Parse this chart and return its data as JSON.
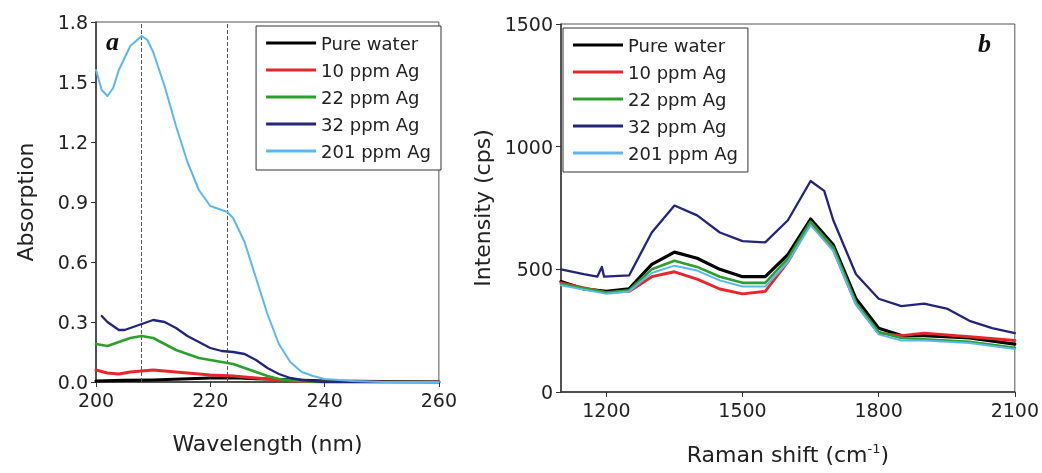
{
  "chart_data": [
    {
      "type": "line",
      "xlabel": "Wavelength (nm)",
      "ylabel": "Absorption",
      "annotations": [
        "a"
      ],
      "xlim": [
        200,
        260
      ],
      "xticks": [
        200,
        220,
        240,
        260
      ],
      "ylim": [
        0,
        1.8
      ],
      "yticks": [
        {
          "value": 0,
          "label": "0.0"
        },
        0.3,
        0.6,
        0.9,
        1.2,
        1.5,
        1.8
      ],
      "grid": false,
      "legend": "top right",
      "marker": "none",
      "line_style": "solid",
      "ref_lines": [
        {
          "axis": "x",
          "value": 208,
          "color": "#555555",
          "line_style": "dashed"
        },
        {
          "axis": "x",
          "value": 223,
          "color": "#555555",
          "line_style": "dashed"
        }
      ],
      "series": [
        {
          "name": "Pure water",
          "color": "#000000",
          "x": [
            200,
            205,
            210,
            215,
            220,
            225,
            230,
            235,
            240,
            250,
            260
          ],
          "values": [
            0.005,
            0.008,
            0.01,
            0.015,
            0.02,
            0.02,
            0.015,
            0.01,
            0.005,
            0.002,
            0
          ]
        },
        {
          "name": "10 ppm Ag",
          "color": "#e8262a",
          "x": [
            200,
            202,
            204,
            206,
            208,
            210,
            212,
            216,
            220,
            224,
            228,
            232,
            235,
            240,
            260
          ],
          "values": [
            0.06,
            0.045,
            0.04,
            0.05,
            0.055,
            0.06,
            0.055,
            0.045,
            0.035,
            0.03,
            0.02,
            0.01,
            0.003,
            0,
            0
          ]
        },
        {
          "name": "22 ppm Ag",
          "color": "#2ca02c",
          "x": [
            200,
            202,
            204,
            206,
            208,
            210,
            212,
            214,
            216,
            218,
            220,
            222,
            224,
            226,
            228,
            230,
            232,
            235,
            240,
            260
          ],
          "values": [
            0.19,
            0.18,
            0.2,
            0.22,
            0.23,
            0.22,
            0.19,
            0.16,
            0.14,
            0.12,
            0.11,
            0.1,
            0.09,
            0.07,
            0.05,
            0.03,
            0.015,
            0.005,
            0,
            0
          ]
        },
        {
          "name": "32 ppm Ag",
          "color": "#23257d",
          "x": [
            201,
            202,
            204,
            205,
            206,
            208,
            210,
            212,
            214,
            216,
            218,
            220,
            222,
            224,
            226,
            228,
            230,
            232,
            234,
            236,
            240,
            260
          ],
          "values": [
            0.33,
            0.3,
            0.26,
            0.26,
            0.27,
            0.29,
            0.31,
            0.3,
            0.27,
            0.23,
            0.2,
            0.17,
            0.155,
            0.15,
            0.14,
            0.11,
            0.07,
            0.04,
            0.02,
            0.01,
            0,
            0
          ]
        },
        {
          "name": "201 ppm Ag",
          "color": "#5bb8ef",
          "x": [
            200,
            201,
            202,
            203,
            204,
            206,
            208,
            209,
            210,
            212,
            214,
            216,
            218,
            220,
            222,
            223,
            224,
            226,
            228,
            230,
            232,
            234,
            236,
            238,
            240,
            245,
            250,
            260
          ],
          "values": [
            1.56,
            1.46,
            1.43,
            1.47,
            1.56,
            1.68,
            1.73,
            1.71,
            1.65,
            1.48,
            1.28,
            1.1,
            0.96,
            0.88,
            0.86,
            0.85,
            0.82,
            0.7,
            0.52,
            0.34,
            0.19,
            0.1,
            0.05,
            0.03,
            0.015,
            0.005,
            0,
            0
          ]
        }
      ]
    },
    {
      "type": "line",
      "xlabel": "Raman shift (cm$^{-1}$)",
      "ylabel": "Intensity (cps)",
      "annotations": [
        "b"
      ],
      "xlim": [
        1100,
        2100
      ],
      "xticks": [
        1200,
        1500,
        1800,
        2100
      ],
      "ylim": [
        0,
        1500
      ],
      "yticks": [
        0,
        500,
        1000,
        1500
      ],
      "grid": false,
      "legend": "top left",
      "marker": "none",
      "line_style": "solid",
      "series": [
        {
          "name": "Pure water",
          "color": "#000000",
          "x": [
            1100,
            1150,
            1200,
            1250,
            1300,
            1350,
            1400,
            1450,
            1500,
            1550,
            1600,
            1650,
            1700,
            1750,
            1800,
            1850,
            1900,
            2000,
            2100
          ],
          "values": [
            450,
            420,
            410,
            420,
            520,
            570,
            545,
            500,
            470,
            470,
            560,
            705,
            600,
            380,
            260,
            230,
            230,
            220,
            195
          ]
        },
        {
          "name": "10 ppm Ag",
          "color": "#e8262a",
          "x": [
            1100,
            1200,
            1250,
            1300,
            1350,
            1400,
            1450,
            1500,
            1550,
            1600,
            1650,
            1700,
            1750,
            1800,
            1850,
            1900,
            2000,
            2100
          ],
          "values": [
            445,
            405,
            410,
            470,
            490,
            460,
            420,
            400,
            410,
            530,
            690,
            580,
            360,
            240,
            230,
            240,
            225,
            210
          ]
        },
        {
          "name": "22 ppm Ag",
          "color": "#2ca02c",
          "x": [
            1100,
            1200,
            1250,
            1300,
            1350,
            1400,
            1450,
            1500,
            1550,
            1600,
            1650,
            1700,
            1750,
            1800,
            1850,
            1900,
            2000,
            2100
          ],
          "values": [
            440,
            405,
            415,
            500,
            535,
            510,
            470,
            445,
            445,
            545,
            695,
            590,
            365,
            245,
            220,
            215,
            205,
            180
          ]
        },
        {
          "name": "32 ppm Ag",
          "color": "#23257d",
          "x": [
            1100,
            1150,
            1180,
            1190,
            1195,
            1250,
            1300,
            1350,
            1400,
            1450,
            1500,
            1550,
            1600,
            1650,
            1680,
            1700,
            1750,
            1800,
            1850,
            1900,
            1950,
            2000,
            2050,
            2100
          ],
          "values": [
            500,
            480,
            470,
            510,
            470,
            475,
            650,
            760,
            720,
            650,
            615,
            610,
            700,
            860,
            820,
            700,
            480,
            380,
            350,
            360,
            340,
            290,
            260,
            240
          ]
        },
        {
          "name": "201 ppm Ag",
          "color": "#5bb8ef",
          "x": [
            1100,
            1200,
            1250,
            1300,
            1350,
            1400,
            1450,
            1500,
            1550,
            1600,
            1650,
            1700,
            1750,
            1800,
            1850,
            1900,
            2000,
            2100
          ],
          "values": [
            435,
            400,
            410,
            485,
            515,
            495,
            455,
            430,
            430,
            530,
            680,
            575,
            355,
            235,
            210,
            210,
            200,
            175
          ]
        }
      ]
    }
  ]
}
